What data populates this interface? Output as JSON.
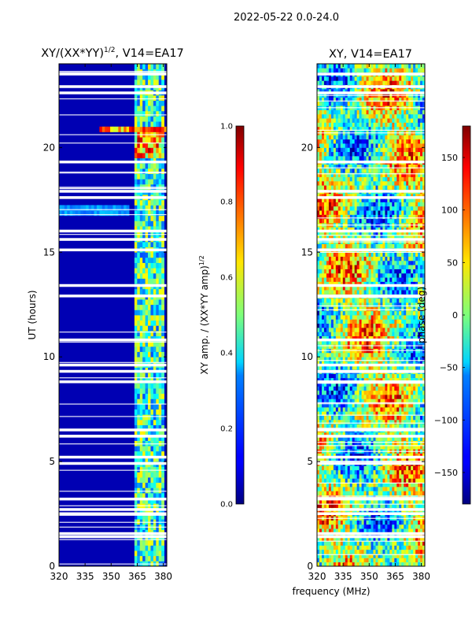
{
  "figure": {
    "suptitle": "2022-05-22 0.0-24.0",
    "xlabel": "frequency (MHz)"
  },
  "chart_data": [
    {
      "type": "heatmap",
      "title": "XY/(XX*YY)",
      "title_exponent": "1/2",
      "title_suffix": ", V14=EA17",
      "xlabel": "frequency (MHz)",
      "ylabel": "UT (hours)",
      "xlim": [
        320,
        382
      ],
      "ylim": [
        0,
        24
      ],
      "xticks": [
        320,
        335,
        350,
        365,
        380
      ],
      "yticks": [
        0,
        5,
        10,
        15,
        20
      ],
      "colormap": "jet",
      "colorbar": {
        "label": "XY amp. / (XX*YY amp)",
        "label_exponent": "1/2",
        "vmin": 0.0,
        "vmax": 1.0,
        "ticks": [
          "0.0",
          "0.2",
          "0.4",
          "0.6",
          "0.8",
          "1.0"
        ]
      },
      "description_values": {
        "background_level": 0.05,
        "bright_channel_band_MHz": [
          363,
          381
        ],
        "bright_band_level": 0.45,
        "rfi_burst_UT": [
          20.6,
          21.2
        ],
        "rfi_burst_level": 0.95,
        "flagged_rows_UT": [
          1.4,
          1.55,
          2.5,
          2.7,
          3.2,
          4.9,
          5.2,
          6.2,
          6.5,
          8.8,
          9.3,
          9.6,
          10.8,
          12.9,
          13.4,
          15.1,
          15.6,
          16.0,
          17.6,
          17.9,
          19.3,
          22.6,
          22.9,
          23.5
        ]
      }
    },
    {
      "type": "heatmap",
      "title": "XY, V14=EA17",
      "xlim": [
        320,
        382
      ],
      "ylim": [
        0,
        24
      ],
      "xticks": [
        320,
        335,
        350,
        365,
        380
      ],
      "yticks": [
        0,
        5,
        10,
        15,
        20
      ],
      "colormap": "jet",
      "colorbar": {
        "label": "phase (deg)",
        "vmin": -180,
        "vmax": 180,
        "ticks": [
          "150",
          "100",
          "50",
          "0",
          "−50",
          "−100",
          "−150"
        ],
        "tick_values": [
          150,
          100,
          50,
          0,
          -50,
          -100,
          -150
        ]
      },
      "description_values": {
        "phase_range_deg": [
          -180,
          180
        ],
        "pattern": "noisy phase with broad diagonal structures"
      }
    }
  ]
}
